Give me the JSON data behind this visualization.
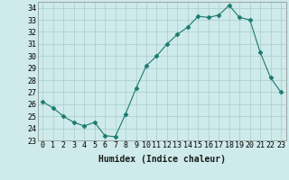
{
  "x": [
    0,
    1,
    2,
    3,
    4,
    5,
    6,
    7,
    8,
    9,
    10,
    11,
    12,
    13,
    14,
    15,
    16,
    17,
    18,
    19,
    20,
    21,
    22,
    23
  ],
  "y": [
    26.2,
    25.7,
    25.0,
    24.5,
    24.2,
    24.5,
    23.4,
    23.3,
    25.2,
    27.3,
    29.2,
    30.0,
    31.0,
    31.8,
    32.4,
    33.3,
    33.2,
    33.4,
    34.2,
    33.2,
    33.0,
    30.3,
    28.2,
    27.0
  ],
  "line_color": "#1a7a6e",
  "marker": "D",
  "marker_size": 2.5,
  "bg_color": "#ceeaea",
  "grid_color": "#aacccc",
  "xlabel": "Humidex (Indice chaleur)",
  "xlim": [
    -0.5,
    23.5
  ],
  "ylim": [
    23,
    34.5
  ],
  "yticks": [
    23,
    24,
    25,
    26,
    27,
    28,
    29,
    30,
    31,
    32,
    33,
    34
  ],
  "xtick_labels": [
    "0",
    "1",
    "2",
    "3",
    "4",
    "5",
    "6",
    "7",
    "8",
    "9",
    "10",
    "11",
    "12",
    "13",
    "14",
    "15",
    "16",
    "17",
    "18",
    "19",
    "20",
    "21",
    "22",
    "23"
  ],
  "tick_fontsize": 6.0,
  "label_fontsize": 7.0
}
